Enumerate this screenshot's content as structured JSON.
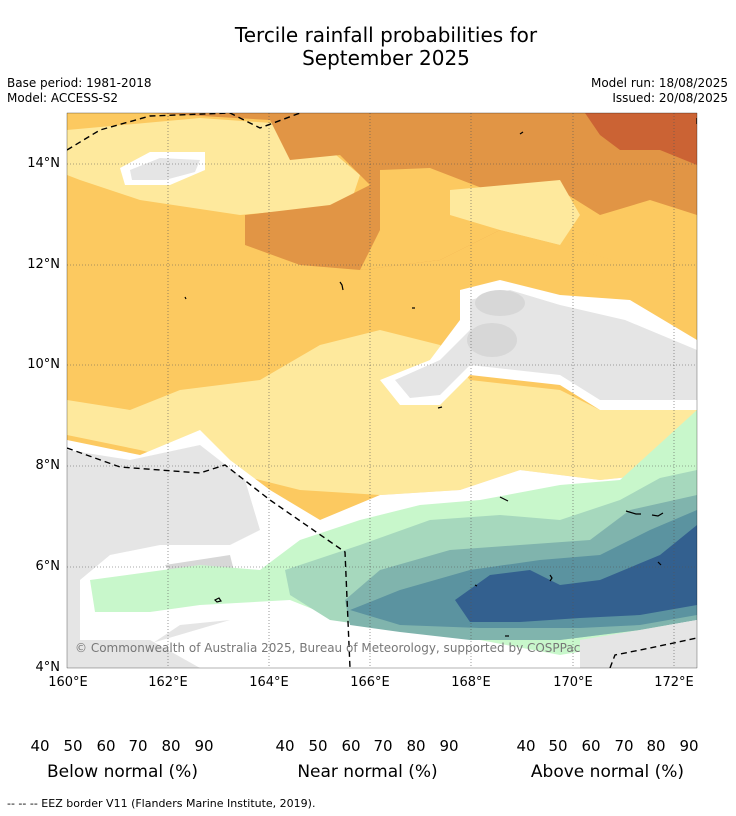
{
  "title_line1": "Tercile rainfall probabilities for",
  "title_line2": "September 2025",
  "base_period": "Base period: 1981-2018",
  "model": "Model: ACCESS-S2",
  "model_run": "Model run: 18/08/2025",
  "issued": "Issued: 20/08/2025",
  "y_ticks": [
    "14°N",
    "12°N",
    "10°N",
    "8°N",
    "6°N",
    "4°N"
  ],
  "x_ticks": [
    "160°E",
    "162°E",
    "164°E",
    "166°E",
    "168°E",
    "170°E",
    "172°E"
  ],
  "copyright": "© Commonwealth of Australia 2025, Bureau of Meteorology, supported by COSPPac",
  "colorbars": [
    {
      "title": "Below normal (%)",
      "labels": [
        "40",
        "50",
        "60",
        "70",
        "80",
        "90"
      ],
      "colors": [
        "#fee99d",
        "#fcc960",
        "#e19545",
        "#cb6334",
        "#b24c2b",
        "#943622"
      ]
    },
    {
      "title": "Near normal (%)",
      "labels": [
        "40",
        "50",
        "60",
        "70",
        "80",
        "90"
      ],
      "colors": [
        "#e5e5e5",
        "#d7d7d7",
        "#c6c6c6",
        "#b2b2b2",
        "#a0a0a0",
        "#8a8a8a"
      ]
    },
    {
      "title": "Above normal (%)",
      "labels": [
        "40",
        "50",
        "60",
        "70",
        "80",
        "90"
      ],
      "colors": [
        "#c8f7cb",
        "#a6d8bd",
        "#80b4ad",
        "#5b93a0",
        "#33608f",
        "#1c4b82"
      ]
    }
  ],
  "footnote": "-- -- -- EEZ border V11 (Flanders Marine Institute, 2019).",
  "colors": {
    "below_40": "#fee99d",
    "below_50": "#fcc960",
    "below_60": "#e19545",
    "below_70": "#cb6334",
    "near_40": "#e5e5e5",
    "near_50": "#d7d7d7",
    "above_40": "#c8f7cb",
    "above_50": "#a6d8bd",
    "above_60": "#80b4ad",
    "above_70": "#5b93a0",
    "above_80": "#33608f"
  }
}
